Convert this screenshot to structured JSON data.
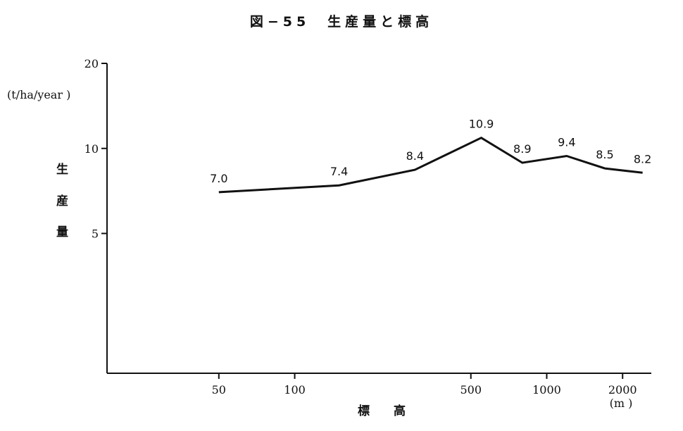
{
  "chart_data": {
    "type": "line",
    "title": "図−55　生産量と標高",
    "ylabel": "生産量",
    "yunit": "(t/ha/year )",
    "xlabel": "標　　高",
    "xunit": "(m )",
    "x_scale": "log",
    "y_scale": "log",
    "ylim": [
      1.6,
      20
    ],
    "xlim": [
      18,
      2600
    ],
    "yticks": [
      5,
      10,
      20
    ],
    "xticks": [
      50,
      100,
      500,
      1000,
      2000
    ],
    "series": [
      {
        "x": [
          50,
          150,
          300,
          550,
          800,
          1200,
          1700,
          2400
        ],
        "values": [
          7.0,
          7.4,
          8.4,
          10.9,
          8.9,
          9.4,
          8.5,
          8.2
        ],
        "labels": [
          "7.0",
          "7.4",
          "8.4",
          "10.9",
          "8.9",
          "9.4",
          "8.5",
          "8.2"
        ]
      }
    ],
    "grid": false,
    "legend": "none"
  }
}
